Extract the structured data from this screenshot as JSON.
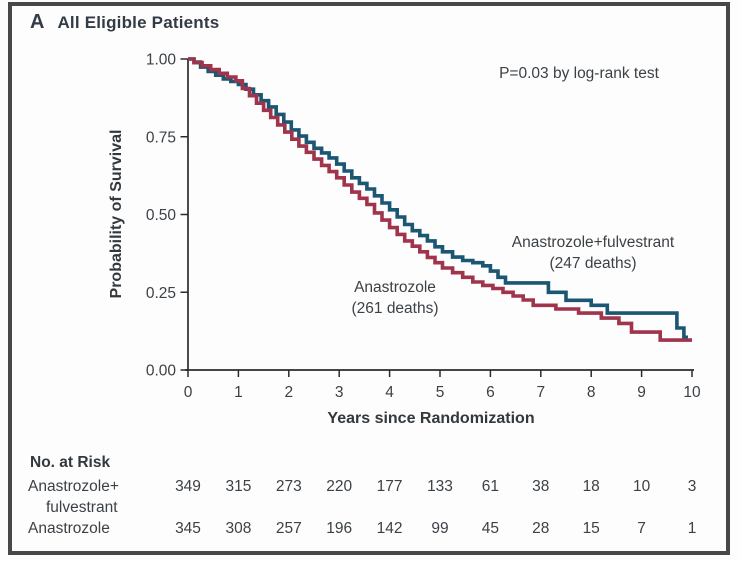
{
  "panel": {
    "letter": "A",
    "title": "All Eligible Patients"
  },
  "annotation": {
    "p_value": "P=0.03 by log-rank test"
  },
  "colors": {
    "curve_anastrozole_fulvestrant": "#1b5673",
    "curve_anastrozole": "#a0344c",
    "axis": "#2b2b2b",
    "text": "#3c4146",
    "frame_border": "#484848"
  },
  "chart_data": {
    "type": "line",
    "subtype": "kaplan-meier-step",
    "title": "All Eligible Patients",
    "xlabel": "Years since Randomization",
    "ylabel": "Probability of Survival",
    "xlim": [
      0,
      10
    ],
    "ylim": [
      0.0,
      1.0
    ],
    "grid": false,
    "legend_position": "annotated-on-plot",
    "x_ticks": [
      "0",
      "1",
      "2",
      "3",
      "4",
      "5",
      "6",
      "7",
      "8",
      "9",
      "10"
    ],
    "y_ticks": [
      {
        "label": "1.00",
        "value": 1.0
      },
      {
        "label": "0.75",
        "value": 0.75
      },
      {
        "label": "0.50",
        "value": 0.5
      },
      {
        "label": "0.25",
        "value": 0.25
      },
      {
        "label": "0.00",
        "value": 0.0
      }
    ],
    "series": [
      {
        "name": "Anastrozole+fulvestrant",
        "deaths": 247,
        "label_lines": [
          "Anastrozole+fulvestrant",
          "(247 deaths)"
        ],
        "color": "#1b5673",
        "end_x": 9.92,
        "points": [
          [
            0,
            1.0
          ],
          [
            0.12,
            0.99
          ],
          [
            0.25,
            0.974
          ],
          [
            0.4,
            0.96
          ],
          [
            0.55,
            0.948
          ],
          [
            0.7,
            0.936
          ],
          [
            0.85,
            0.928
          ],
          [
            1.0,
            0.918
          ],
          [
            1.15,
            0.903
          ],
          [
            1.3,
            0.885
          ],
          [
            1.45,
            0.866
          ],
          [
            1.6,
            0.846
          ],
          [
            1.75,
            0.822
          ],
          [
            1.9,
            0.797
          ],
          [
            2.05,
            0.772
          ],
          [
            2.2,
            0.752
          ],
          [
            2.35,
            0.732
          ],
          [
            2.5,
            0.713
          ],
          [
            2.65,
            0.698
          ],
          [
            2.8,
            0.682
          ],
          [
            2.95,
            0.662
          ],
          [
            3.1,
            0.64
          ],
          [
            3.25,
            0.618
          ],
          [
            3.4,
            0.6
          ],
          [
            3.55,
            0.582
          ],
          [
            3.7,
            0.56
          ],
          [
            3.85,
            0.537
          ],
          [
            4.0,
            0.515
          ],
          [
            4.15,
            0.492
          ],
          [
            4.3,
            0.468
          ],
          [
            4.45,
            0.448
          ],
          [
            4.6,
            0.432
          ],
          [
            4.75,
            0.415
          ],
          [
            4.9,
            0.396
          ],
          [
            5.05,
            0.38
          ],
          [
            5.25,
            0.363
          ],
          [
            5.45,
            0.352
          ],
          [
            5.65,
            0.345
          ],
          [
            5.85,
            0.335
          ],
          [
            6.0,
            0.318
          ],
          [
            6.15,
            0.298
          ],
          [
            6.3,
            0.28
          ],
          [
            7.15,
            0.25
          ],
          [
            7.5,
            0.224
          ],
          [
            8.0,
            0.208
          ],
          [
            8.32,
            0.183
          ],
          [
            9.7,
            0.135
          ],
          [
            9.84,
            0.105
          ]
        ]
      },
      {
        "name": "Anastrozole",
        "deaths": 261,
        "label_lines": [
          "Anastrozole",
          "(261 deaths)"
        ],
        "color": "#a0344c",
        "end_x": 10.0,
        "points": [
          [
            0,
            1.0
          ],
          [
            0.12,
            0.988
          ],
          [
            0.28,
            0.978
          ],
          [
            0.45,
            0.966
          ],
          [
            0.62,
            0.954
          ],
          [
            0.78,
            0.942
          ],
          [
            0.95,
            0.93
          ],
          [
            1.08,
            0.905
          ],
          [
            1.22,
            0.882
          ],
          [
            1.36,
            0.858
          ],
          [
            1.5,
            0.835
          ],
          [
            1.64,
            0.812
          ],
          [
            1.78,
            0.788
          ],
          [
            1.92,
            0.765
          ],
          [
            2.06,
            0.742
          ],
          [
            2.2,
            0.72
          ],
          [
            2.35,
            0.7
          ],
          [
            2.5,
            0.678
          ],
          [
            2.65,
            0.658
          ],
          [
            2.8,
            0.638
          ],
          [
            2.95,
            0.618
          ],
          [
            3.1,
            0.595
          ],
          [
            3.25,
            0.572
          ],
          [
            3.4,
            0.552
          ],
          [
            3.55,
            0.532
          ],
          [
            3.7,
            0.505
          ],
          [
            3.85,
            0.482
          ],
          [
            4.0,
            0.458
          ],
          [
            4.15,
            0.436
          ],
          [
            4.3,
            0.415
          ],
          [
            4.45,
            0.398
          ],
          [
            4.6,
            0.38
          ],
          [
            4.75,
            0.362
          ],
          [
            4.9,
            0.345
          ],
          [
            5.05,
            0.328
          ],
          [
            5.25,
            0.313
          ],
          [
            5.45,
            0.298
          ],
          [
            5.65,
            0.283
          ],
          [
            5.85,
            0.272
          ],
          [
            6.05,
            0.262
          ],
          [
            6.25,
            0.25
          ],
          [
            6.45,
            0.238
          ],
          [
            6.65,
            0.225
          ],
          [
            6.85,
            0.208
          ],
          [
            7.3,
            0.196
          ],
          [
            7.75,
            0.183
          ],
          [
            8.2,
            0.167
          ],
          [
            8.55,
            0.15
          ],
          [
            8.8,
            0.122
          ],
          [
            9.37,
            0.096
          ]
        ]
      }
    ]
  },
  "risk_table": {
    "header": "No. at Risk",
    "rows": [
      {
        "label_lines": [
          "Anastrozole+",
          "fulvestrant"
        ],
        "values": [
          "349",
          "315",
          "273",
          "220",
          "177",
          "133",
          "61",
          "38",
          "18",
          "10",
          "3"
        ]
      },
      {
        "label_lines": [
          "Anastrozole"
        ],
        "values": [
          "345",
          "308",
          "257",
          "196",
          "142",
          "99",
          "45",
          "28",
          "15",
          "7",
          "1"
        ]
      }
    ]
  }
}
